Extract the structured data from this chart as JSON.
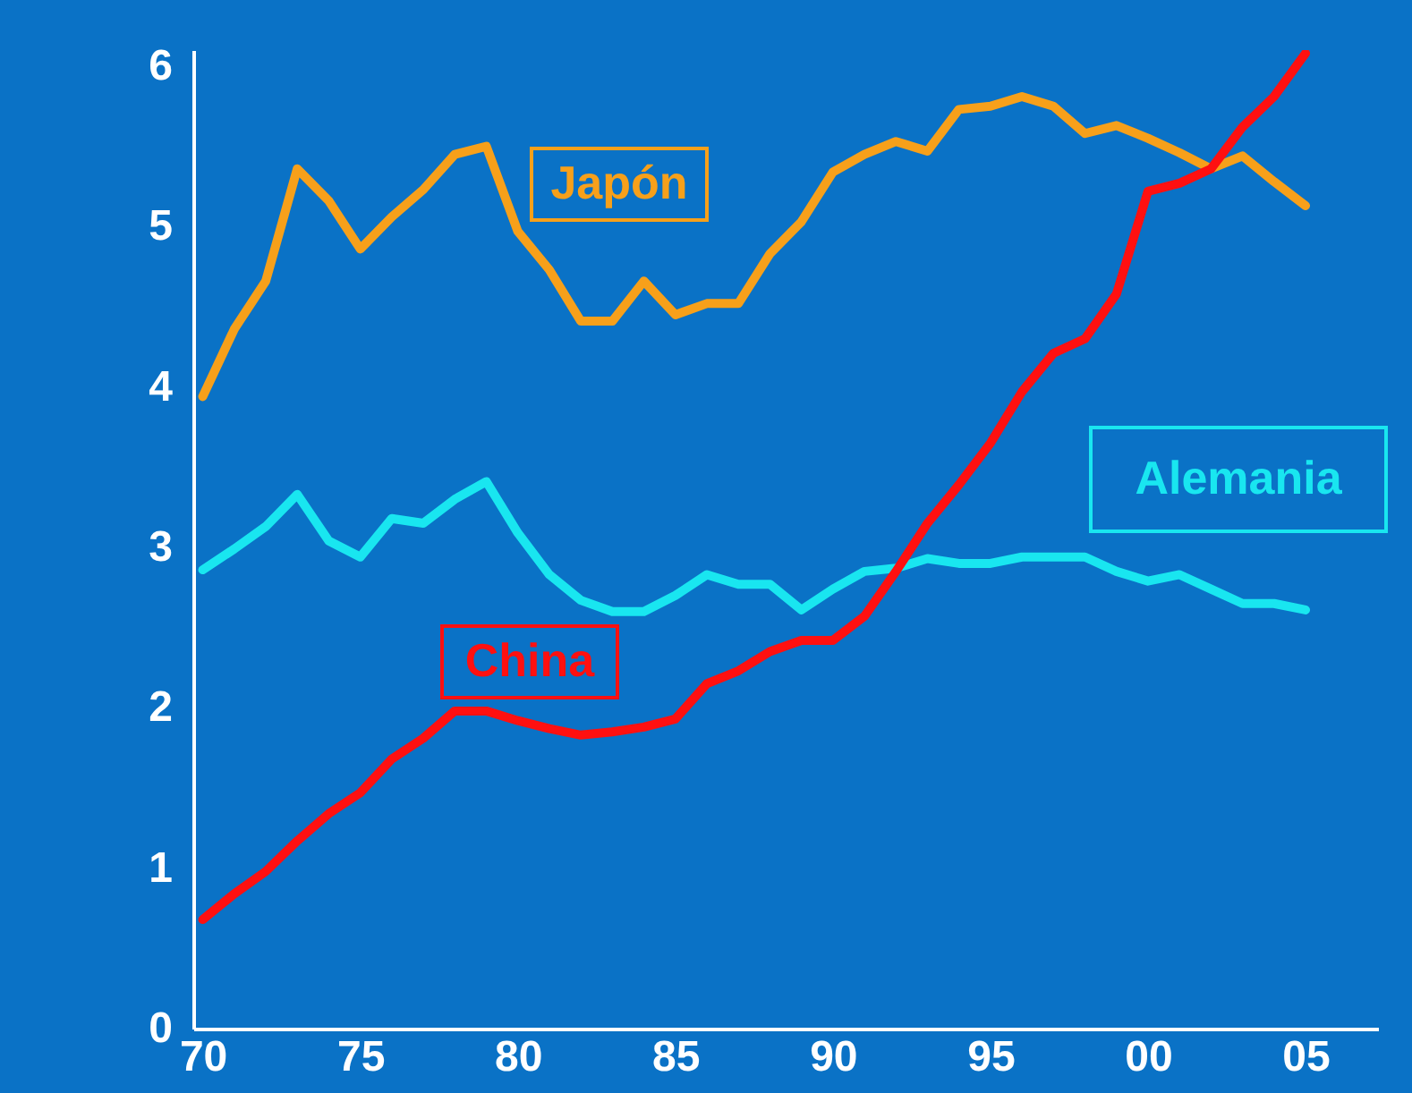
{
  "chart_data": {
    "type": "line",
    "x": [
      1970,
      1971,
      1972,
      1973,
      1974,
      1975,
      1976,
      1977,
      1978,
      1979,
      1980,
      1981,
      1982,
      1983,
      1984,
      1985,
      1986,
      1987,
      1988,
      1989,
      1990,
      1991,
      1992,
      1993,
      1994,
      1995,
      1996,
      1997,
      1998,
      1999,
      2000,
      2001,
      2002,
      2003,
      2004,
      2005
    ],
    "series": [
      {
        "name": "Japón",
        "color": "#f7a01a",
        "values": [
          3.94,
          4.36,
          4.66,
          5.36,
          5.16,
          4.86,
          5.06,
          5.23,
          5.45,
          5.5,
          4.97,
          4.73,
          4.41,
          4.41,
          4.66,
          4.45,
          4.52,
          4.52,
          4.83,
          5.03,
          5.34,
          5.45,
          5.53,
          5.47,
          5.73,
          5.75,
          5.81,
          5.75,
          5.58,
          5.63,
          5.55,
          5.46,
          5.36,
          5.44,
          5.28,
          5.13
        ]
      },
      {
        "name": "Alemania",
        "color": "#19e6f0",
        "values": [
          2.86,
          2.99,
          3.13,
          3.33,
          3.04,
          2.94,
          3.18,
          3.15,
          3.3,
          3.41,
          3.09,
          2.83,
          2.67,
          2.6,
          2.6,
          2.7,
          2.83,
          2.77,
          2.77,
          2.61,
          2.74,
          2.85,
          2.87,
          2.93,
          2.9,
          2.9,
          2.94,
          2.94,
          2.94,
          2.85,
          2.79,
          2.83,
          2.74,
          2.65,
          2.65,
          2.61
        ]
      },
      {
        "name": "China",
        "color": "#ff1010",
        "values": [
          0.68,
          0.84,
          0.98,
          1.17,
          1.34,
          1.47,
          1.68,
          1.81,
          1.98,
          1.98,
          1.92,
          1.87,
          1.83,
          1.85,
          1.88,
          1.93,
          2.15,
          2.23,
          2.35,
          2.42,
          2.42,
          2.57,
          2.85,
          3.15,
          3.39,
          3.65,
          3.97,
          4.21,
          4.3,
          4.58,
          5.22,
          5.27,
          5.36,
          5.62,
          5.81,
          6.08
        ]
      }
    ],
    "xlim": [
      1969.7,
      2007.3
    ],
    "xticks": [
      {
        "value": 1970,
        "label": "70"
      },
      {
        "value": 1975,
        "label": "75"
      },
      {
        "value": 1980,
        "label": "80"
      },
      {
        "value": 1985,
        "label": "85"
      },
      {
        "value": 1990,
        "label": "90"
      },
      {
        "value": 1995,
        "label": "95"
      },
      {
        "value": 2000,
        "label": "00"
      },
      {
        "value": 2005,
        "label": "05"
      }
    ],
    "ylim": [
      0,
      6.1
    ],
    "yticks": [
      0,
      1,
      2,
      3,
      4,
      5,
      6
    ],
    "grid": false,
    "marker": "none",
    "line_style": "solid"
  }
}
